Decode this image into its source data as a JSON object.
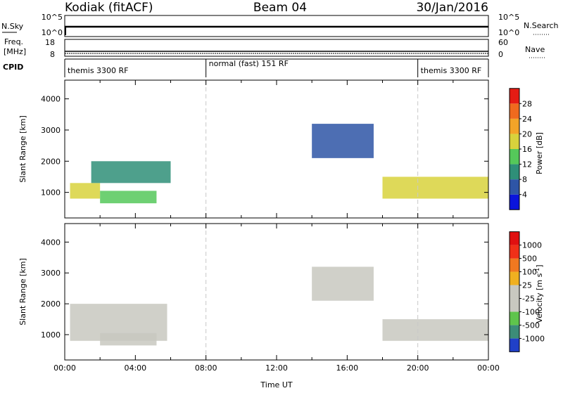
{
  "header": {
    "station": "Kodiak (fitACF)",
    "beam": "Beam 04",
    "date": "30/Jan/2016"
  },
  "summary_panels": {
    "nsky_label": "N.Sky",
    "nsky_ticks": [
      "10^5",
      "10^0"
    ],
    "nsearch_label": "N.Search",
    "nsearch_ticks": [
      "10^5",
      "10^0"
    ],
    "freq_label": "Freq.",
    "freq_unit": "[MHz]",
    "freq_ticks": [
      "18",
      "8"
    ],
    "nave_label": "Nave",
    "nave_ticks": [
      "60",
      "0"
    ],
    "cpid_label": "CPID",
    "cpid_segments": [
      {
        "label": "themis 3300 RF",
        "start_hour": 0,
        "end_hour": 8
      },
      {
        "label": "normal (fast) 151 RF",
        "start_hour": 8,
        "end_hour": 20
      },
      {
        "label": "themis 3300 RF",
        "start_hour": 20,
        "end_hour": 24
      }
    ]
  },
  "chart_data": [
    {
      "type": "heatmap",
      "name": "power",
      "ylabel": "Slant Range [km]",
      "ylim": [
        180,
        4600
      ],
      "yticks": [
        1000,
        2000,
        3000,
        4000
      ],
      "xlim": [
        0,
        24
      ],
      "colorbar": {
        "label": "Power [dB]",
        "ticks": [
          "4",
          "8",
          "12",
          "16",
          "20",
          "24",
          "28"
        ],
        "colors": [
          "#0a14dc",
          "#2e55a6",
          "#2f8f78",
          "#55c85a",
          "#d8d23c",
          "#f3a428",
          "#f06a1e",
          "#e51c14"
        ],
        "range": [
          0,
          32
        ]
      },
      "cells": [
        {
          "t0": 0.3,
          "t1": 2.0,
          "r0": 800,
          "r1": 1300,
          "level": 4
        },
        {
          "t0": 1.5,
          "t1": 6.0,
          "r0": 1300,
          "r1": 2000,
          "level": 2
        },
        {
          "t0": 2.0,
          "t1": 5.2,
          "r0": 650,
          "r1": 1050,
          "level": 3
        },
        {
          "t0": 14.0,
          "t1": 17.5,
          "r0": 2100,
          "r1": 3200,
          "level": 1
        },
        {
          "t0": 18.0,
          "t1": 24.0,
          "r0": 800,
          "r1": 1500,
          "level": 4
        }
      ]
    },
    {
      "type": "heatmap",
      "name": "velocity",
      "xlabel": "Time UT",
      "ylabel": "Slant Range [km]",
      "ylim": [
        180,
        4600
      ],
      "yticks": [
        1000,
        2000,
        3000,
        4000
      ],
      "xlim": [
        0,
        24
      ],
      "xticks": [
        "00:00",
        "04:00",
        "08:00",
        "12:00",
        "16:00",
        "20:00",
        "00:00"
      ],
      "colorbar": {
        "label": "Velocity [m s",
        "label_superscript": "-1",
        "label_close": "]",
        "ticks": [
          "1000",
          "500",
          "100",
          "25",
          "-25",
          "-100",
          "-500",
          "-1000"
        ],
        "colors": [
          "#2040c8",
          "#3c8c78",
          "#5fc44c",
          "#c8c8c0",
          "#c8c8c0",
          "#f0b020",
          "#f07820",
          "#f03018",
          "#e01010"
        ]
      },
      "cells": [
        {
          "t0": 0.3,
          "t1": 5.8,
          "r0": 800,
          "r1": 2000,
          "level": 3
        },
        {
          "t0": 2.0,
          "t1": 5.2,
          "r0": 650,
          "r1": 1050,
          "level": 3
        },
        {
          "t0": 14.0,
          "t1": 17.5,
          "r0": 2100,
          "r1": 3200,
          "level": 3
        },
        {
          "t0": 18.0,
          "t1": 24.0,
          "r0": 800,
          "r1": 1500,
          "level": 3
        }
      ]
    }
  ]
}
